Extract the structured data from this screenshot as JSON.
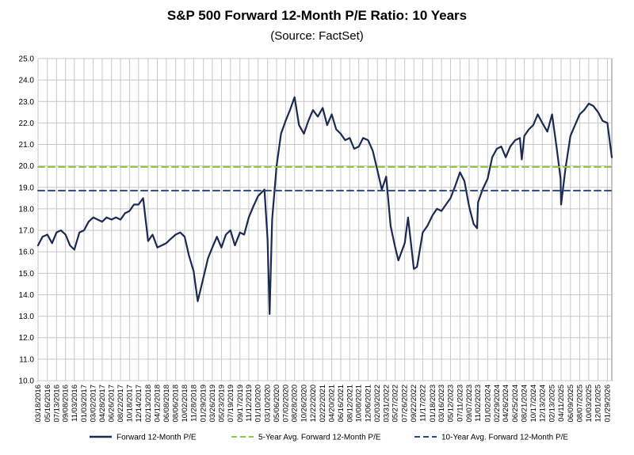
{
  "title": "S&P 500 Forward 12-Month P/E Ratio: 10 Years",
  "subtitle": "(Source: FactSet)",
  "colors": {
    "series": "#1a2a52",
    "avg5": "#8dc63f",
    "avg10": "#2f4a7a",
    "grid": "#c8c8c8"
  },
  "chart_data": {
    "type": "line",
    "title": "S&P 500 Forward 12-Month P/E Ratio: 10 Years",
    "subtitle": "(Source: FactSet)",
    "xlabel": "",
    "ylabel": "",
    "ylim": [
      10.0,
      25.0
    ],
    "yticks": [
      "10.0",
      "11.0",
      "12.0",
      "13.0",
      "14.0",
      "15.0",
      "16.0",
      "17.0",
      "18.0",
      "19.0",
      "20.0",
      "21.0",
      "22.0",
      "23.0",
      "24.0",
      "25.0"
    ],
    "xticks": [
      "03/18/2016",
      "05/16/2016",
      "07/13/2016",
      "09/08/2016",
      "11/03/2016",
      "01/03/2017",
      "03/02/2017",
      "04/28/2017",
      "06/26/2017",
      "08/22/2017",
      "10/18/2017",
      "12/14/2017",
      "02/13/2018",
      "04/12/2018",
      "06/08/2018",
      "08/06/2018",
      "10/02/2018",
      "11/28/2018",
      "01/29/2019",
      "03/26/2019",
      "05/23/2019",
      "07/19/2019",
      "09/17/2019",
      "11/12/2019",
      "01/10/2020",
      "03/10/2020",
      "05/06/2020",
      "07/02/2020",
      "08/28/2020",
      "10/26/2020",
      "12/22/2020",
      "02/22/2021",
      "04/20/2021",
      "06/16/2021",
      "08/12/2021",
      "10/08/2021",
      "12/06/2021",
      "02/03/2022",
      "03/31/2022",
      "05/27/2022",
      "07/26/2022",
      "09/22/2022",
      "11/17/2022",
      "01/18/2023",
      "03/16/2023",
      "05/12/2023",
      "07/11/2023",
      "09/07/2023",
      "11/02/2023",
      "01/02/2024",
      "02/29/2024",
      "04/26/2024",
      "06/25/2024",
      "08/21/2024",
      "10/17/2024",
      "12/13/2024",
      "02/13/2025",
      "04/11/2025",
      "06/09/2025",
      "08/07/2025",
      "10/03/2025",
      "12/01/2025",
      "01/29/2026"
    ],
    "legend": "bottom",
    "grid": true,
    "series": [
      {
        "name": "Forward 12-Month P/E",
        "style": "solid",
        "x": [
          "03/18/2016",
          "04/15/2016",
          "05/16/2016",
          "06/15/2016",
          "07/13/2016",
          "08/10/2016",
          "09/08/2016",
          "10/06/2016",
          "11/03/2016",
          "12/05/2016",
          "01/03/2017",
          "02/01/2017",
          "03/02/2017",
          "03/30/2017",
          "04/28/2017",
          "05/26/2017",
          "06/26/2017",
          "07/24/2017",
          "08/22/2017",
          "09/20/2017",
          "10/18/2017",
          "11/15/2017",
          "12/14/2017",
          "01/12/2018",
          "02/13/2018",
          "03/13/2018",
          "04/12/2018",
          "05/10/2018",
          "06/08/2018",
          "07/06/2018",
          "08/06/2018",
          "09/04/2018",
          "10/02/2018",
          "10/30/2018",
          "11/28/2018",
          "12/24/2018",
          "01/29/2019",
          "02/27/2019",
          "03/26/2019",
          "04/24/2019",
          "05/23/2019",
          "06/20/2019",
          "07/19/2019",
          "08/16/2019",
          "09/17/2019",
          "10/14/2019",
          "11/12/2019",
          "12/10/2019",
          "01/10/2020",
          "02/19/2020",
          "03/10/2020",
          "03/23/2020",
          "04/08/2020",
          "05/06/2020",
          "06/03/2020",
          "07/02/2020",
          "07/30/2020",
          "08/28/2020",
          "09/25/2020",
          "10/26/2020",
          "11/23/2020",
          "12/22/2020",
          "01/22/2021",
          "02/22/2021",
          "03/22/2021",
          "04/20/2021",
          "05/18/2021",
          "06/16/2021",
          "07/14/2021",
          "08/12/2021",
          "09/09/2021",
          "10/08/2021",
          "11/05/2021",
          "12/06/2021",
          "01/05/2022",
          "02/03/2022",
          "03/03/2022",
          "03/31/2022",
          "04/28/2022",
          "05/27/2022",
          "06/16/2022",
          "07/26/2022",
          "08/16/2022",
          "09/22/2022",
          "10/12/2022",
          "11/17/2022",
          "12/16/2022",
          "01/18/2023",
          "02/15/2023",
          "03/16/2023",
          "04/13/2023",
          "05/12/2023",
          "06/12/2023",
          "07/11/2023",
          "08/08/2023",
          "09/07/2023",
          "10/05/2023",
          "10/27/2023",
          "11/02/2023",
          "12/01/2023",
          "01/02/2024",
          "01/31/2024",
          "02/29/2024",
          "03/28/2024",
          "04/26/2024",
          "05/24/2024",
          "06/25/2024",
          "07/24/2024",
          "08/05/2024",
          "08/21/2024",
          "09/19/2024",
          "10/17/2024",
          "11/14/2024",
          "12/13/2024",
          "01/14/2025",
          "02/13/2025",
          "03/13/2025",
          "04/08/2025",
          "04/11/2025",
          "05/09/2025",
          "06/09/2025",
          "07/08/2025",
          "08/07/2025",
          "09/04/2025",
          "10/03/2025",
          "10/31/2025",
          "12/01/2025",
          "12/30/2025",
          "01/29/2026",
          "02/26/2026"
        ],
        "values": [
          16.3,
          16.7,
          16.8,
          16.4,
          16.9,
          17.0,
          16.8,
          16.3,
          16.1,
          16.9,
          17.0,
          17.4,
          17.6,
          17.5,
          17.4,
          17.6,
          17.5,
          17.6,
          17.5,
          17.8,
          17.9,
          18.2,
          18.2,
          18.5,
          16.5,
          16.8,
          16.2,
          16.3,
          16.4,
          16.6,
          16.8,
          16.9,
          16.7,
          15.8,
          15.1,
          13.7,
          14.8,
          15.7,
          16.2,
          16.7,
          16.2,
          16.8,
          17.0,
          16.3,
          16.9,
          16.8,
          17.6,
          18.1,
          18.6,
          18.9,
          16.6,
          13.1,
          17.5,
          20.0,
          21.5,
          22.1,
          22.6,
          23.2,
          21.9,
          21.5,
          22.1,
          22.6,
          22.3,
          22.7,
          21.9,
          22.4,
          21.7,
          21.5,
          21.2,
          21.3,
          20.8,
          20.9,
          21.3,
          21.2,
          20.7,
          19.8,
          18.9,
          19.5,
          17.2,
          16.2,
          15.6,
          16.4,
          17.6,
          15.2,
          15.3,
          16.9,
          17.2,
          17.7,
          18.0,
          17.9,
          18.2,
          18.5,
          19.1,
          19.7,
          19.3,
          18.1,
          17.3,
          17.1,
          18.3,
          18.9,
          19.4,
          20.4,
          20.8,
          20.9,
          20.4,
          20.9,
          21.2,
          21.3,
          20.3,
          21.4,
          21.7,
          21.9,
          22.4,
          22.0,
          21.6,
          22.4,
          20.9,
          19.4,
          18.2,
          19.9,
          21.4,
          21.9,
          22.4,
          22.6,
          22.9,
          22.8,
          22.5,
          22.1,
          22.0,
          20.4
        ]
      },
      {
        "name": "5-Year Avg. Forward 12-Month P/E",
        "style": "dashed",
        "x": [
          "03/18/2016",
          "02/26/2026"
        ],
        "values": [
          19.95,
          19.95
        ]
      },
      {
        "name": "10-Year Avg. Forward 12-Month P/E",
        "style": "dashed",
        "x": [
          "03/18/2016",
          "02/26/2026"
        ],
        "values": [
          18.85,
          18.85
        ]
      }
    ]
  }
}
